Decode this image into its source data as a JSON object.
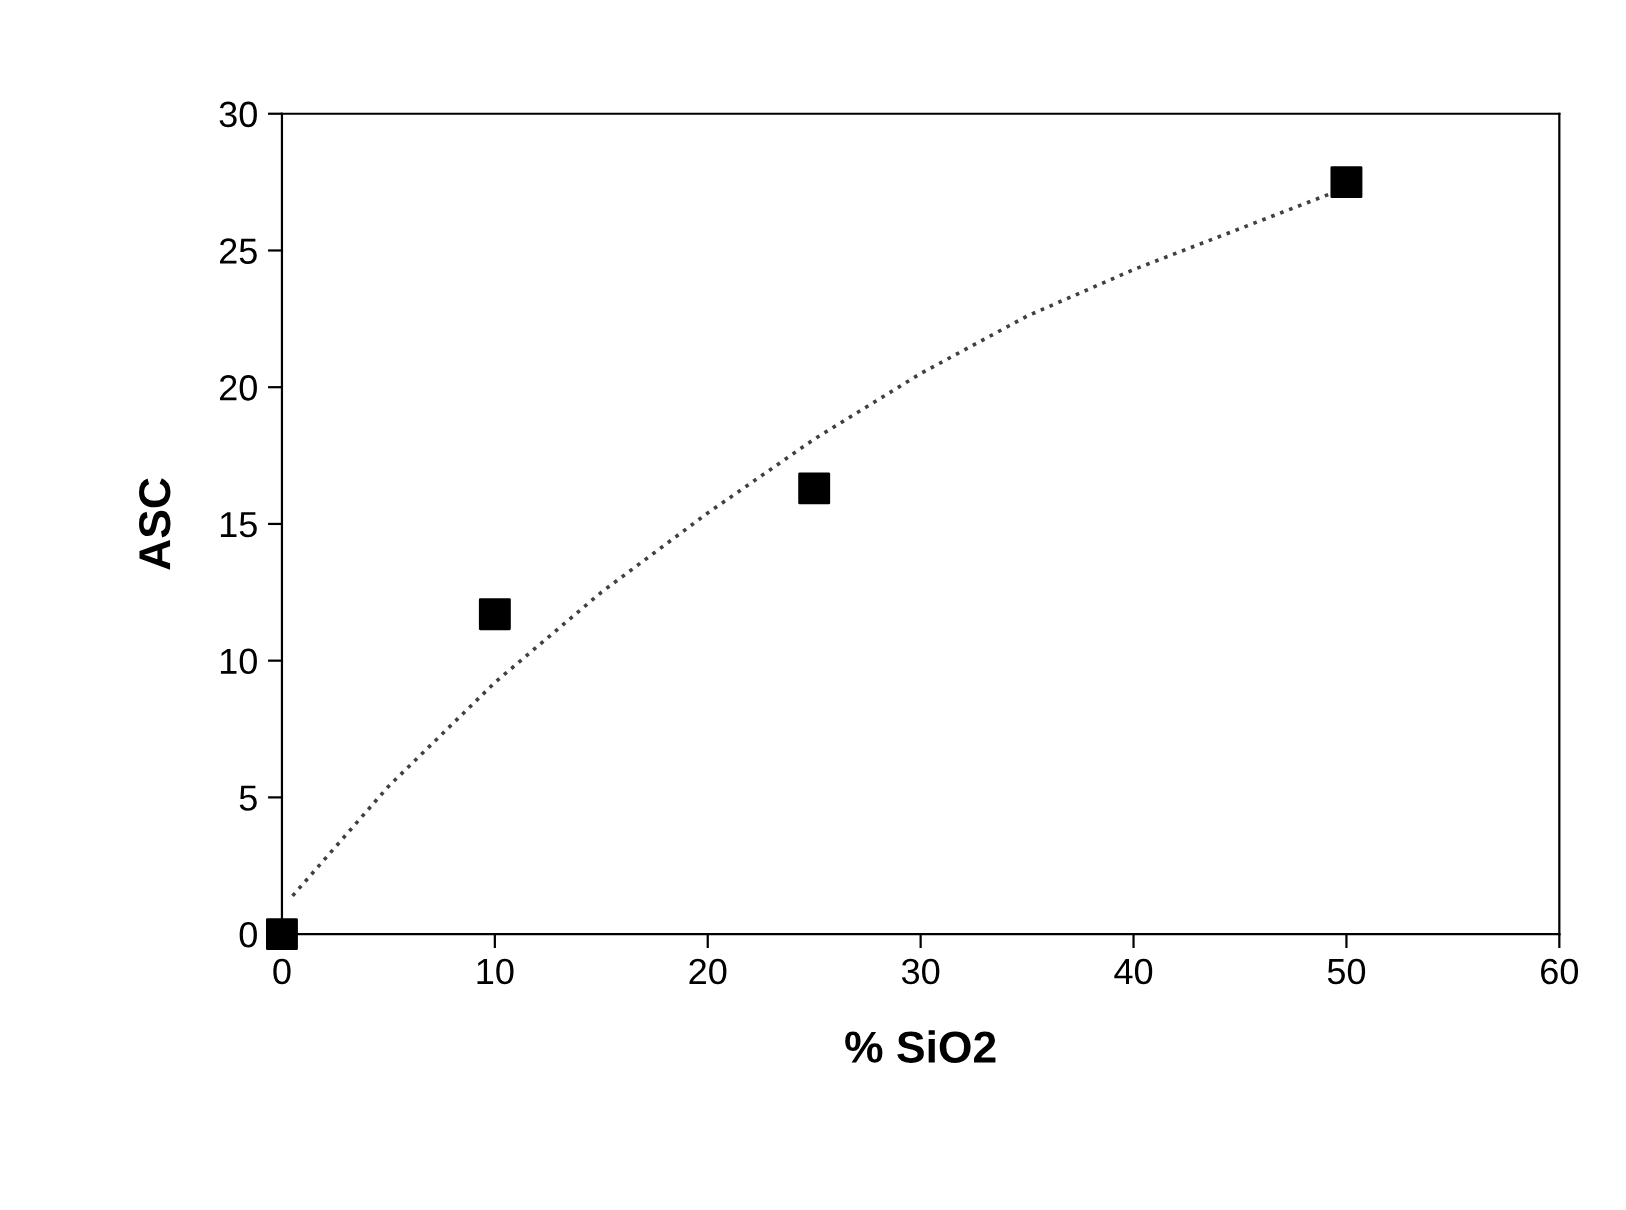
{
  "chart_data": {
    "type": "scatter",
    "xlabel": "% SiO2",
    "ylabel": "ASC",
    "xlim": [
      0,
      60
    ],
    "ylim": [
      0,
      30
    ],
    "xticks": [
      0,
      10,
      20,
      30,
      40,
      50,
      60
    ],
    "yticks": [
      0,
      5,
      10,
      15,
      20,
      25,
      30
    ],
    "grid": false,
    "legend": false,
    "marker": "square",
    "series": [
      {
        "color": "#000000",
        "x": [
          0,
          10,
          25,
          50
        ],
        "values": [
          0,
          11.7,
          16.3,
          27.5
        ]
      },
      {
        "type": "line",
        "color": "#404040",
        "line_style": "dotted",
        "marker": "none",
        "x": [
          0.5,
          5,
          10,
          15,
          20,
          25,
          30,
          35,
          40,
          45,
          50
        ],
        "values": [
          1.4,
          5.4,
          9.2,
          12.5,
          15.4,
          18.1,
          20.5,
          22.6,
          24.3,
          25.8,
          27.3
        ]
      }
    ]
  }
}
